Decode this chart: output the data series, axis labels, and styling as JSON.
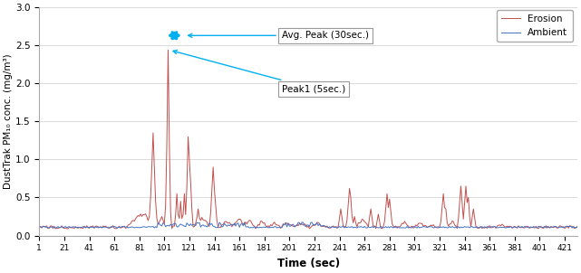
{
  "title": "",
  "xlabel": "Time (sec)",
  "ylabel": "DustTrak PM₁₀ conc. (mg/m³)",
  "xlim": [
    1,
    431
  ],
  "ylim": [
    0.0,
    3.0
  ],
  "xticks": [
    1,
    21,
    41,
    61,
    81,
    101,
    121,
    141,
    161,
    181,
    201,
    221,
    241,
    261,
    281,
    301,
    321,
    341,
    361,
    381,
    401,
    421
  ],
  "yticks": [
    0.0,
    0.5,
    1.0,
    1.5,
    2.0,
    2.5,
    3.0
  ],
  "ambient_color": "#4472C4",
  "erosion_color": "#C0504D",
  "background_color": "#FFFFFF",
  "legend_ambient": "Ambient",
  "legend_erosion": "Erosion",
  "annotation1_text": "Avg. Peak (30sec.)",
  "annotation2_text": "Peak1 (5sec.)",
  "arrow_color": "#00B0F0",
  "figsize": [
    6.41,
    3.02
  ],
  "dpi": 100
}
